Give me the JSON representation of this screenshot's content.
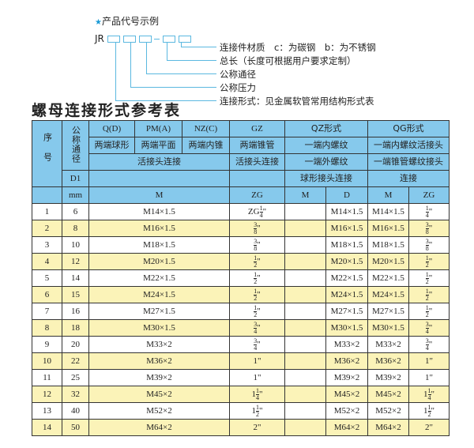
{
  "example": {
    "heading": "产品代号示例",
    "prefix": "JR",
    "separator": "-",
    "legend": [
      "连接件材质　c：为碳钢　b：为不锈钢",
      "总长（长度可根据用户要求定制）",
      "公称通径",
      "公称压力",
      "连接形式：见金属软管常用结构形式表"
    ]
  },
  "title": "螺母连接形式参考表",
  "header": {
    "seq": "序号",
    "nominal": "公称通径",
    "q": "Q(D)",
    "pm": "PM(A)",
    "nz": "NZ(C)",
    "gz": "GZ",
    "qz": "QZ形式",
    "qg": "QG形式",
    "q2": "两端球形",
    "pm2": "两端平面",
    "nz2": "两端内锥",
    "gz2": "两端锥管",
    "qz2": "一端内螺纹",
    "qg2": "一端内螺纹活接头",
    "qpn3": "活接头连接",
    "gz3": "活接头连接",
    "qz3": "一端外螺纹",
    "qg3": "一端锥管螺纹接头",
    "d1": "D1",
    "qz4": "球形接头连接",
    "qg4": "连接",
    "mm": "mm",
    "m": "M",
    "zg": "ZG",
    "qzm": "M",
    "qzd": "D",
    "qgm": "M",
    "qgzg": "ZG"
  },
  "rows": [
    {
      "n": "1",
      "d": "6",
      "m": "M14×1.5",
      "zg": {
        "pre": "ZG",
        "w": "",
        "num": "1",
        "den": "4",
        "u": "\""
      },
      "qzm": "",
      "qzd": "M14×1.5",
      "qgm": "M14×1.5",
      "qgzg": {
        "w": "",
        "num": "1",
        "den": "4",
        "u": "\""
      }
    },
    {
      "n": "2",
      "d": "8",
      "m": "M16×1.5",
      "zg": {
        "pre": "",
        "w": "",
        "num": "3",
        "den": "8",
        "u": "\""
      },
      "qzm": "",
      "qzd": "M16×1.5",
      "qgm": "M16×1.5",
      "qgzg": {
        "w": "",
        "num": "3",
        "den": "8",
        "u": "\""
      }
    },
    {
      "n": "3",
      "d": "10",
      "m": "M18×1.5",
      "zg": {
        "pre": "",
        "w": "",
        "num": "3",
        "den": "8",
        "u": "\""
      },
      "qzm": "",
      "qzd": "M18×1.5",
      "qgm": "M18×1.5",
      "qgzg": {
        "w": "",
        "num": "3",
        "den": "8",
        "u": "\""
      }
    },
    {
      "n": "4",
      "d": "12",
      "m": "M20×1.5",
      "zg": {
        "pre": "",
        "w": "",
        "num": "1",
        "den": "2",
        "u": "\""
      },
      "qzm": "",
      "qzd": "M20×1.5",
      "qgm": "M20×1.5",
      "qgzg": {
        "w": "",
        "num": "1",
        "den": "2",
        "u": "\""
      }
    },
    {
      "n": "5",
      "d": "14",
      "m": "M22×1.5",
      "zg": {
        "pre": "",
        "w": "",
        "num": "1",
        "den": "2",
        "u": "\""
      },
      "qzm": "",
      "qzd": "M22×1.5",
      "qgm": "M22×1.5",
      "qgzg": {
        "w": "",
        "num": "1",
        "den": "2",
        "u": "\""
      }
    },
    {
      "n": "6",
      "d": "15",
      "m": "M24×1.5",
      "zg": {
        "pre": "",
        "w": "",
        "num": "1",
        "den": "2",
        "u": "\""
      },
      "qzm": "",
      "qzd": "M24×1.5",
      "qgm": "M24×1.5",
      "qgzg": {
        "w": "",
        "num": "1",
        "den": "2",
        "u": "\""
      }
    },
    {
      "n": "7",
      "d": "16",
      "m": "M27×1.5",
      "zg": {
        "pre": "",
        "w": "",
        "num": "1",
        "den": "2",
        "u": "\""
      },
      "qzm": "",
      "qzd": "M27×1.5",
      "qgm": "M27×1.5",
      "qgzg": {
        "w": "",
        "num": "1",
        "den": "2",
        "u": "\""
      }
    },
    {
      "n": "8",
      "d": "18",
      "m": "M30×1.5",
      "zg": {
        "pre": "",
        "w": "",
        "num": "3",
        "den": "4",
        "u": "\""
      },
      "qzm": "",
      "qzd": "M30×1.5",
      "qgm": "M30×1.5",
      "qgzg": {
        "w": "",
        "num": "3",
        "den": "4",
        "u": "\""
      }
    },
    {
      "n": "9",
      "d": "20",
      "m": "M33×2",
      "zg": {
        "pre": "",
        "w": "",
        "num": "3",
        "den": "4",
        "u": "\""
      },
      "qzm": "",
      "qzd": "M33×2",
      "qgm": "M33×2",
      "qgzg": {
        "w": "",
        "num": "3",
        "den": "4",
        "u": "\""
      }
    },
    {
      "n": "10",
      "d": "22",
      "m": "M36×2",
      "zg": {
        "pre": "",
        "w": "1",
        "num": "",
        "den": "",
        "u": "\""
      },
      "qzm": "",
      "qzd": "M36×2",
      "qgm": "M36×2",
      "qgzg": {
        "w": "1",
        "num": "",
        "den": "",
        "u": "\""
      }
    },
    {
      "n": "11",
      "d": "25",
      "m": "M39×2",
      "zg": {
        "pre": "",
        "w": "1",
        "num": "",
        "den": "",
        "u": "\""
      },
      "qzm": "",
      "qzd": "M39×2",
      "qgm": "M39×2",
      "qgzg": {
        "w": "1",
        "num": "",
        "den": "",
        "u": "\""
      }
    },
    {
      "n": "12",
      "d": "32",
      "m": "M45×2",
      "zg": {
        "pre": "",
        "w": "1",
        "num": "1",
        "den": "4",
        "u": "\""
      },
      "qzm": "",
      "qzd": "M45×2",
      "qgm": "M45×2",
      "qgzg": {
        "w": "1",
        "num": "1",
        "den": "4",
        "u": "\""
      }
    },
    {
      "n": "13",
      "d": "40",
      "m": "M52×2",
      "zg": {
        "pre": "",
        "w": "1",
        "num": "1",
        "den": "2",
        "u": "\""
      },
      "qzm": "",
      "qzd": "M52×2",
      "qgm": "M52×2",
      "qgzg": {
        "w": "1",
        "num": "1",
        "den": "2",
        "u": "\""
      }
    },
    {
      "n": "14",
      "d": "50",
      "m": "M64×2",
      "zg": {
        "pre": "",
        "w": "2",
        "num": "",
        "den": "",
        "u": "\""
      },
      "qzm": "",
      "qzd": "M64×2",
      "qgm": "M64×2",
      "qgzg": {
        "w": "2",
        "num": "",
        "den": "",
        "u": "\""
      }
    }
  ]
}
